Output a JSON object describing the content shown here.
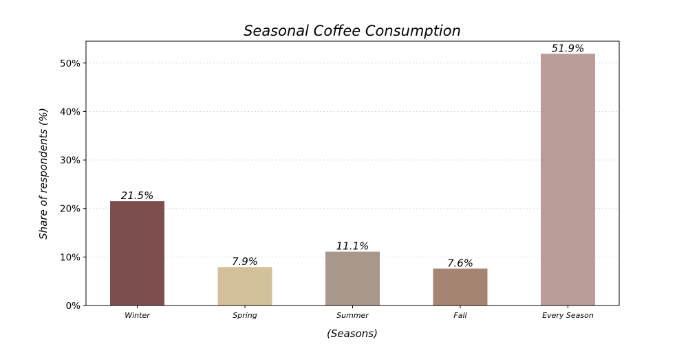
{
  "chart_data": {
    "type": "bar",
    "title": "Seasonal Coffee Consumption",
    "xlabel": "(Seasons)",
    "ylabel": "Share of respondents (%)",
    "categories": [
      "Winter",
      "Spring",
      "Summer",
      "Fall",
      "Every Season"
    ],
    "values": [
      21.5,
      7.9,
      11.1,
      7.6,
      51.9
    ],
    "data_labels": [
      "21.5%",
      "7.9%",
      "11.1%",
      "7.6%",
      "51.9%"
    ],
    "colors": [
      "#7e4e4f",
      "#d4c09b",
      "#a8988c",
      "#a68472",
      "#ba9d98"
    ],
    "ylim": [
      0,
      54.5
    ],
    "yticks": [
      0,
      10,
      20,
      30,
      40,
      50
    ],
    "ytick_labels": [
      "0%",
      "10%",
      "20%",
      "30%",
      "40%",
      "50%"
    ],
    "grid": true,
    "legend": "none"
  }
}
